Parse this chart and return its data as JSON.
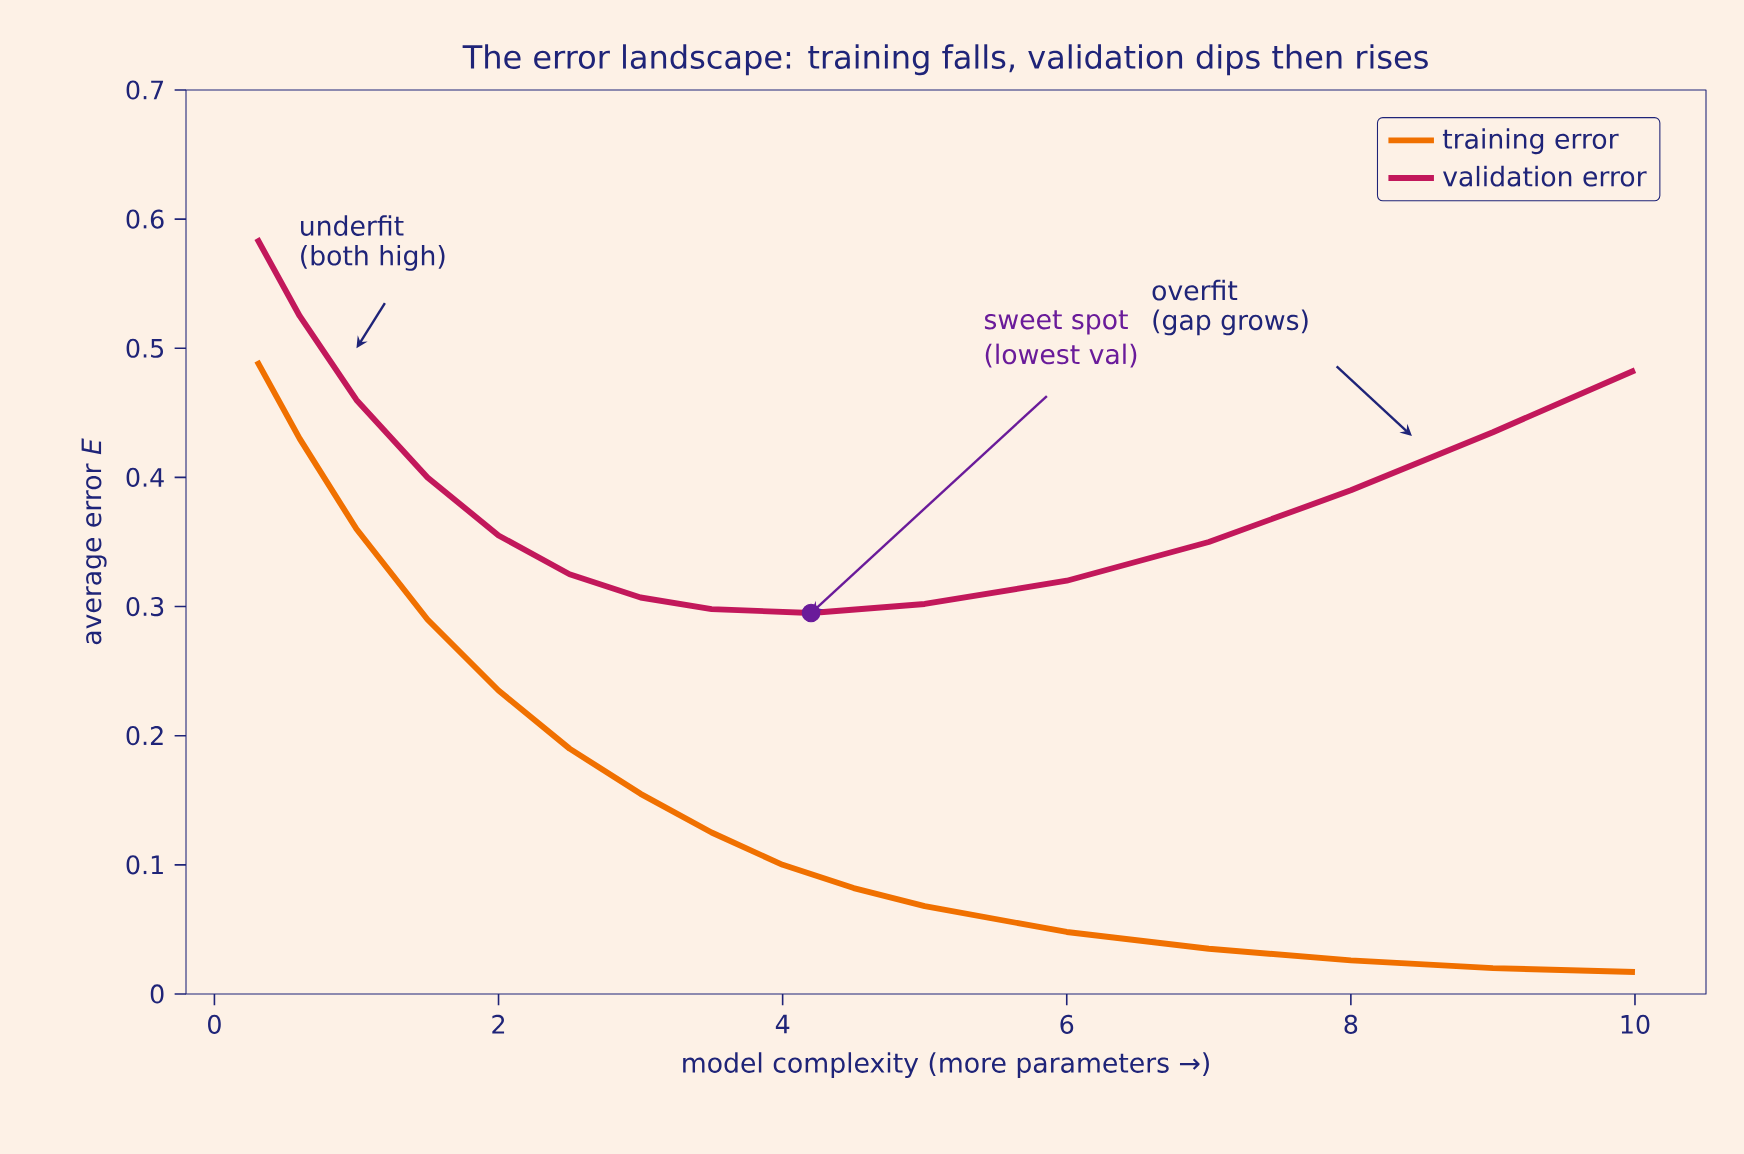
{
  "chart_data": {
    "type": "line",
    "title": "The error landscape: training falls, validation dips then rises",
    "xlabel": "model complexity  (more parameters →)",
    "ylabel": "average error  *E*",
    "xlim": [
      -0.2,
      10.5
    ],
    "ylim": [
      0,
      0.7
    ],
    "xticks": [
      0,
      2,
      4,
      6,
      8,
      10
    ],
    "yticks": [
      0,
      0.1,
      0.2,
      0.3,
      0.4,
      0.5,
      0.6,
      0.7
    ],
    "legend": "top right",
    "series": [
      {
        "name": "training error",
        "color": "#f07000",
        "x": [
          0.3,
          0.6,
          1,
          1.5,
          2,
          2.5,
          3,
          3.5,
          4,
          4.5,
          5,
          6,
          7,
          8,
          9,
          10
        ],
        "values": [
          0.49,
          0.43,
          0.36,
          0.29,
          0.235,
          0.19,
          0.155,
          0.125,
          0.1,
          0.082,
          0.068,
          0.048,
          0.035,
          0.026,
          0.02,
          0.017
        ]
      },
      {
        "name": "validation error",
        "color": "#c2185b",
        "x": [
          0.3,
          0.6,
          1,
          1.5,
          2,
          2.5,
          3,
          3.5,
          4.2,
          5,
          6,
          7,
          8,
          9,
          10
        ],
        "values": [
          0.585,
          0.525,
          0.46,
          0.4,
          0.355,
          0.325,
          0.307,
          0.298,
          0.295,
          0.302,
          0.32,
          0.35,
          0.39,
          0.435,
          0.483
        ]
      },
      {
        "type": "scatter",
        "marker": "circle",
        "color": "#6a1b9a",
        "x": [
          4.2
        ],
        "values": [
          0.295
        ]
      }
    ],
    "annotations": [
      "underfit",
      "(both high)",
      "sweet spot",
      {
        "text": "(lowest val)",
        "x": 4.2,
        "y": 0.295
      },
      "overfit",
      "(gap grows)"
    ]
  }
}
